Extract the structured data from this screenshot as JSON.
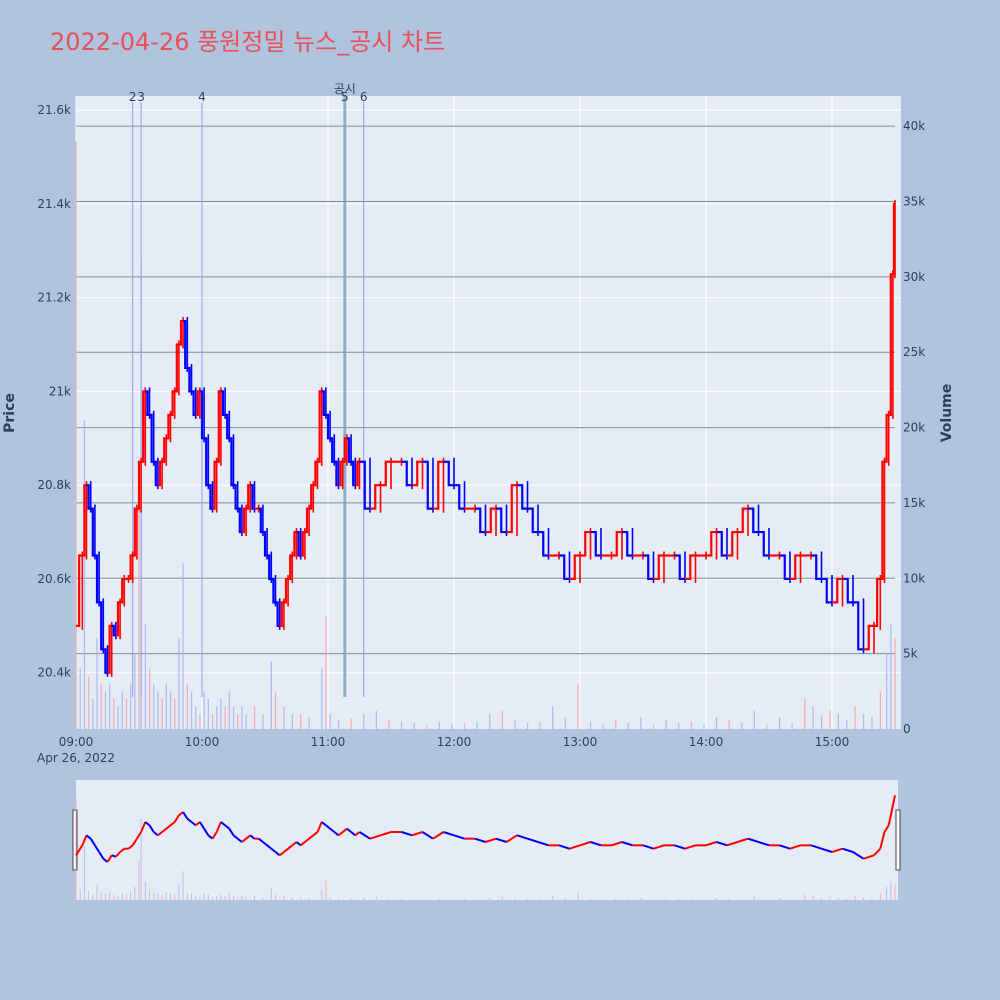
{
  "page_title": "2022-04-26 풍원정밀 뉴스_공시 차트",
  "chart_data": {
    "type": "candlestick",
    "title": "2022-04-26 풍원정밀 뉴스_공시 차트",
    "ylabel_left": "Price",
    "ylabel_right": "Volume",
    "date_label": "Apr 26, 2022",
    "x_ticks": [
      "09:00",
      "10:00",
      "11:00",
      "12:00",
      "13:00",
      "14:00",
      "15:00"
    ],
    "price_ticks": [
      "20.4k",
      "20.6k",
      "20.8k",
      "21k",
      "21.2k",
      "21.4k",
      "21.6k"
    ],
    "price_tick_values": [
      20400,
      20600,
      20800,
      21000,
      21200,
      21400,
      21600
    ],
    "volume_ticks": [
      "0",
      "5k",
      "10k",
      "15k",
      "20k",
      "25k",
      "30k",
      "35k",
      "40k"
    ],
    "volume_tick_values": [
      0,
      5000,
      10000,
      15000,
      20000,
      25000,
      30000,
      35000,
      40000
    ],
    "x_range_minutes": [
      0,
      390
    ],
    "price_range": [
      20280,
      21630
    ],
    "volume_range": [
      0,
      42000
    ],
    "up_color": "#ff0000",
    "down_color": "#0000ff",
    "annotations": [
      {
        "label": "2",
        "minute": 27
      },
      {
        "label": "3",
        "minute": 31
      },
      {
        "label": "4",
        "minute": 60
      },
      {
        "label": "공시",
        "minute": 128,
        "highlight": true
      },
      {
        "label": "5",
        "minute": 128
      },
      {
        "label": "6",
        "minute": 137
      }
    ],
    "price_series": [
      [
        0,
        20500
      ],
      [
        3,
        20650
      ],
      [
        5,
        20800
      ],
      [
        7,
        20750
      ],
      [
        9,
        20650
      ],
      [
        11,
        20550
      ],
      [
        13,
        20450
      ],
      [
        15,
        20400
      ],
      [
        17,
        20500
      ],
      [
        19,
        20480
      ],
      [
        21,
        20550
      ],
      [
        23,
        20600
      ],
      [
        25,
        20600
      ],
      [
        27,
        20650
      ],
      [
        29,
        20750
      ],
      [
        31,
        20850
      ],
      [
        33,
        21000
      ],
      [
        35,
        20950
      ],
      [
        37,
        20850
      ],
      [
        39,
        20800
      ],
      [
        41,
        20850
      ],
      [
        43,
        20900
      ],
      [
        45,
        20950
      ],
      [
        47,
        21000
      ],
      [
        49,
        21100
      ],
      [
        51,
        21150
      ],
      [
        53,
        21050
      ],
      [
        55,
        21000
      ],
      [
        57,
        20950
      ],
      [
        59,
        21000
      ],
      [
        61,
        20900
      ],
      [
        63,
        20800
      ],
      [
        65,
        20750
      ],
      [
        67,
        20850
      ],
      [
        69,
        21000
      ],
      [
        71,
        20950
      ],
      [
        73,
        20900
      ],
      [
        75,
        20800
      ],
      [
        77,
        20750
      ],
      [
        79,
        20700
      ],
      [
        81,
        20750
      ],
      [
        83,
        20800
      ],
      [
        85,
        20750
      ],
      [
        87,
        20750
      ],
      [
        89,
        20700
      ],
      [
        91,
        20650
      ],
      [
        93,
        20600
      ],
      [
        95,
        20550
      ],
      [
        97,
        20500
      ],
      [
        99,
        20550
      ],
      [
        101,
        20600
      ],
      [
        103,
        20650
      ],
      [
        105,
        20700
      ],
      [
        107,
        20650
      ],
      [
        109,
        20700
      ],
      [
        111,
        20750
      ],
      [
        113,
        20800
      ],
      [
        115,
        20850
      ],
      [
        117,
        21000
      ],
      [
        119,
        20950
      ],
      [
        121,
        20900
      ],
      [
        123,
        20850
      ],
      [
        125,
        20800
      ],
      [
        127,
        20850
      ],
      [
        129,
        20900
      ],
      [
        131,
        20850
      ],
      [
        133,
        20800
      ],
      [
        135,
        20850
      ],
      [
        140,
        20750
      ],
      [
        145,
        20800
      ],
      [
        150,
        20850
      ],
      [
        155,
        20850
      ],
      [
        160,
        20800
      ],
      [
        165,
        20850
      ],
      [
        170,
        20750
      ],
      [
        175,
        20850
      ],
      [
        180,
        20800
      ],
      [
        185,
        20750
      ],
      [
        190,
        20750
      ],
      [
        195,
        20700
      ],
      [
        200,
        20750
      ],
      [
        205,
        20700
      ],
      [
        210,
        20800
      ],
      [
        215,
        20750
      ],
      [
        220,
        20700
      ],
      [
        225,
        20650
      ],
      [
        230,
        20650
      ],
      [
        235,
        20600
      ],
      [
        240,
        20650
      ],
      [
        245,
        20700
      ],
      [
        250,
        20650
      ],
      [
        255,
        20650
      ],
      [
        260,
        20700
      ],
      [
        265,
        20650
      ],
      [
        270,
        20650
      ],
      [
        275,
        20600
      ],
      [
        280,
        20650
      ],
      [
        285,
        20650
      ],
      [
        290,
        20600
      ],
      [
        295,
        20650
      ],
      [
        300,
        20650
      ],
      [
        305,
        20700
      ],
      [
        310,
        20650
      ],
      [
        315,
        20700
      ],
      [
        320,
        20750
      ],
      [
        325,
        20700
      ],
      [
        330,
        20650
      ],
      [
        335,
        20650
      ],
      [
        340,
        20600
      ],
      [
        345,
        20650
      ],
      [
        350,
        20650
      ],
      [
        355,
        20600
      ],
      [
        360,
        20550
      ],
      [
        365,
        20600
      ],
      [
        370,
        20550
      ],
      [
        375,
        20450
      ],
      [
        380,
        20500
      ],
      [
        383,
        20600
      ],
      [
        385,
        20850
      ],
      [
        387,
        20950
      ],
      [
        389,
        21250
      ],
      [
        390,
        21400
      ]
    ],
    "volume_series": [
      [
        0,
        39000
      ],
      [
        2,
        4000
      ],
      [
        4,
        20500
      ],
      [
        6,
        3500
      ],
      [
        8,
        2000
      ],
      [
        10,
        6000
      ],
      [
        12,
        3000
      ],
      [
        14,
        2500
      ],
      [
        16,
        3000
      ],
      [
        18,
        2000
      ],
      [
        20,
        1500
      ],
      [
        22,
        2500
      ],
      [
        24,
        2000
      ],
      [
        26,
        3000
      ],
      [
        28,
        5000
      ],
      [
        30,
        15000
      ],
      [
        31,
        31000
      ],
      [
        33,
        7000
      ],
      [
        35,
        4000
      ],
      [
        37,
        3000
      ],
      [
        39,
        2500
      ],
      [
        41,
        2000
      ],
      [
        43,
        3000
      ],
      [
        45,
        2500
      ],
      [
        47,
        2000
      ],
      [
        49,
        6000
      ],
      [
        51,
        11000
      ],
      [
        53,
        3000
      ],
      [
        55,
        2500
      ],
      [
        57,
        1500
      ],
      [
        59,
        1000
      ],
      [
        61,
        2500
      ],
      [
        63,
        2000
      ],
      [
        65,
        1000
      ],
      [
        67,
        1500
      ],
      [
        69,
        2000
      ],
      [
        71,
        1500
      ],
      [
        73,
        2500
      ],
      [
        75,
        1500
      ],
      [
        77,
        1000
      ],
      [
        79,
        1500
      ],
      [
        81,
        1000
      ],
      [
        85,
        1500
      ],
      [
        89,
        1000
      ],
      [
        93,
        4500
      ],
      [
        95,
        2500
      ],
      [
        99,
        1500
      ],
      [
        103,
        1000
      ],
      [
        107,
        1000
      ],
      [
        111,
        800
      ],
      [
        117,
        4000
      ],
      [
        119,
        7500
      ],
      [
        121,
        1000
      ],
      [
        125,
        600
      ],
      [
        131,
        700
      ],
      [
        137,
        1000
      ],
      [
        143,
        1200
      ],
      [
        149,
        600
      ],
      [
        155,
        500
      ],
      [
        161,
        400
      ],
      [
        167,
        300
      ],
      [
        173,
        500
      ],
      [
        179,
        300
      ],
      [
        185,
        400
      ],
      [
        191,
        500
      ],
      [
        197,
        1000
      ],
      [
        203,
        1200
      ],
      [
        209,
        600
      ],
      [
        215,
        400
      ],
      [
        221,
        500
      ],
      [
        227,
        1500
      ],
      [
        233,
        800
      ],
      [
        239,
        3000
      ],
      [
        245,
        500
      ],
      [
        251,
        300
      ],
      [
        257,
        600
      ],
      [
        263,
        400
      ],
      [
        269,
        800
      ],
      [
        275,
        300
      ],
      [
        281,
        600
      ],
      [
        287,
        400
      ],
      [
        293,
        500
      ],
      [
        299,
        300
      ],
      [
        305,
        800
      ],
      [
        311,
        600
      ],
      [
        317,
        400
      ],
      [
        323,
        1200
      ],
      [
        329,
        300
      ],
      [
        335,
        800
      ],
      [
        341,
        400
      ],
      [
        347,
        2000
      ],
      [
        351,
        1500
      ],
      [
        355,
        900
      ],
      [
        359,
        1200
      ],
      [
        363,
        1000
      ],
      [
        367,
        600
      ],
      [
        371,
        1500
      ],
      [
        375,
        1000
      ],
      [
        379,
        800
      ],
      [
        383,
        2500
      ],
      [
        386,
        5000
      ],
      [
        388,
        7000
      ],
      [
        390,
        6000
      ]
    ]
  }
}
